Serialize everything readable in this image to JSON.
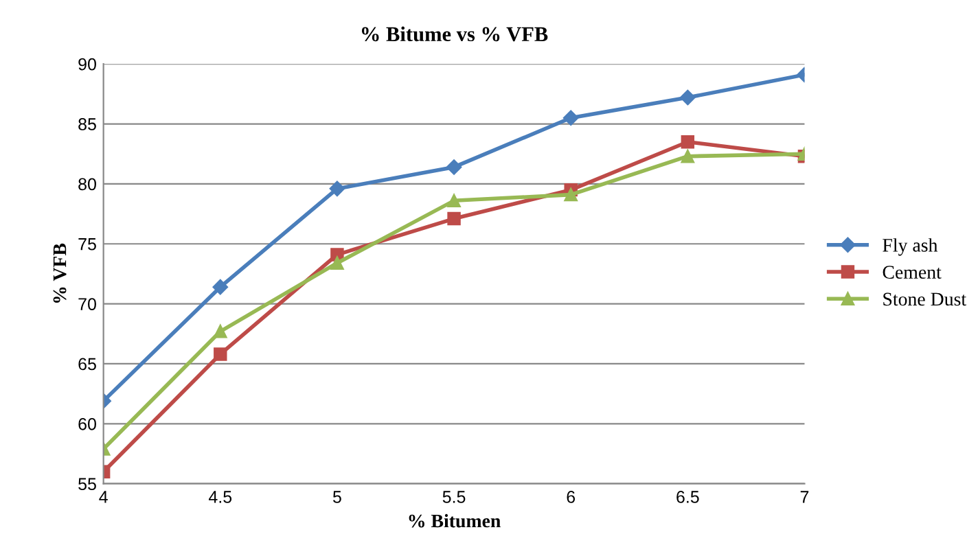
{
  "chart_data": {
    "type": "line",
    "title": "% Bitume vs % VFB",
    "xlabel": "% Bitumen",
    "ylabel": "% VFB",
    "x": [
      4,
      4.5,
      5,
      5.5,
      6,
      6.5,
      7
    ],
    "xlim": [
      4,
      7
    ],
    "xticks": [
      4,
      4.5,
      5,
      5.5,
      6,
      6.5,
      7
    ],
    "ylim": [
      55,
      90
    ],
    "yticks": [
      55,
      60,
      65,
      70,
      75,
      80,
      85,
      90
    ],
    "grid": "y",
    "legend": "right",
    "series": [
      {
        "name": "Fly ash",
        "color": "#4a7ebb",
        "marker": "diamond",
        "values": [
          61.9,
          71.4,
          79.6,
          81.4,
          85.5,
          87.2,
          89.1
        ]
      },
      {
        "name": "Cement",
        "color": "#be4b48",
        "marker": "square",
        "values": [
          56.0,
          65.8,
          74.1,
          77.1,
          79.5,
          83.5,
          82.3
        ]
      },
      {
        "name": "Stone Dust",
        "color": "#98b954",
        "marker": "triangle",
        "values": [
          57.9,
          67.7,
          73.4,
          78.6,
          79.1,
          82.3,
          82.5
        ]
      }
    ]
  }
}
